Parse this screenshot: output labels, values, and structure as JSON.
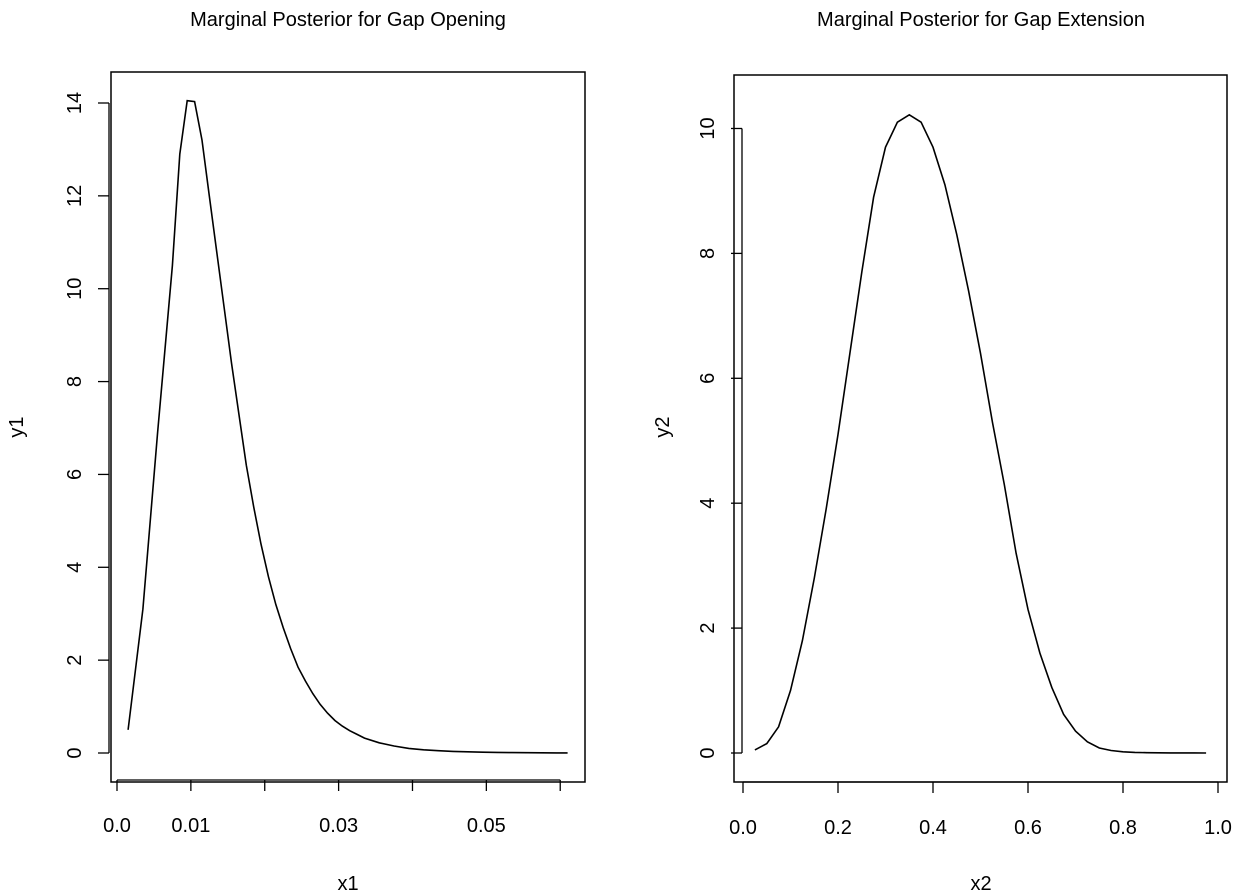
{
  "chart_data": [
    {
      "type": "line",
      "title": "Marginal Posterior for Gap Opening",
      "xlabel": "x1",
      "ylabel": "y1",
      "xlim": [
        0.0,
        0.062
      ],
      "ylim": [
        0,
        14
      ],
      "xticks": [
        0.0,
        0.01,
        0.02,
        0.03,
        0.04,
        0.05,
        0.06
      ],
      "xticklabels": [
        "0.0",
        "0.01",
        "",
        "0.03",
        "",
        "0.05",
        ""
      ],
      "yticks": [
        0,
        2,
        4,
        6,
        8,
        10,
        12,
        14
      ],
      "yticklabels": [
        "0",
        "2",
        "4",
        "6",
        "8",
        "10",
        "12",
        "14"
      ],
      "grid": false,
      "series": [
        {
          "x": [
            0.0015,
            0.0035,
            0.0055,
            0.0075,
            0.0085,
            0.0095,
            0.0105,
            0.0115,
            0.0125,
            0.0135,
            0.0145,
            0.0155,
            0.0165,
            0.0175,
            0.0185,
            0.0195,
            0.0205,
            0.0215,
            0.0225,
            0.0235,
            0.0245,
            0.0255,
            0.0265,
            0.0275,
            0.0285,
            0.0295,
            0.0305,
            0.0315,
            0.0325,
            0.0335,
            0.0355,
            0.0375,
            0.0395,
            0.0415,
            0.0435,
            0.0455,
            0.0475,
            0.0495,
            0.0515,
            0.0535,
            0.0555,
            0.0575,
            0.0595,
            0.061
          ],
          "y": [
            0.5,
            3.1,
            6.9,
            10.5,
            12.9,
            14.05,
            14.03,
            13.2,
            12.0,
            10.8,
            9.6,
            8.4,
            7.3,
            6.2,
            5.3,
            4.5,
            3.8,
            3.2,
            2.7,
            2.25,
            1.85,
            1.55,
            1.28,
            1.05,
            0.86,
            0.7,
            0.58,
            0.48,
            0.4,
            0.32,
            0.22,
            0.15,
            0.1,
            0.07,
            0.05,
            0.035,
            0.025,
            0.018,
            0.012,
            0.008,
            0.006,
            0.004,
            0.003,
            0.002
          ]
        }
      ]
    },
    {
      "type": "line",
      "title": "Marginal Posterior for Gap Extension",
      "xlabel": "x2",
      "ylabel": "y2",
      "xlim": [
        0.0,
        1.0
      ],
      "ylim": [
        0,
        10.2
      ],
      "xticks": [
        0.0,
        0.2,
        0.4,
        0.6,
        0.8,
        1.0
      ],
      "xticklabels": [
        "0.0",
        "0.2",
        "0.4",
        "0.6",
        "0.8",
        "1.0"
      ],
      "yticks": [
        0,
        2,
        4,
        6,
        8,
        10
      ],
      "yticklabels": [
        "0",
        "2",
        "4",
        "6",
        "8",
        "10"
      ],
      "grid": false,
      "series": [
        {
          "x": [
            0.025,
            0.05,
            0.075,
            0.1,
            0.125,
            0.15,
            0.175,
            0.2,
            0.225,
            0.25,
            0.275,
            0.3,
            0.325,
            0.35,
            0.375,
            0.4,
            0.425,
            0.45,
            0.475,
            0.5,
            0.525,
            0.55,
            0.575,
            0.6,
            0.625,
            0.65,
            0.675,
            0.7,
            0.725,
            0.75,
            0.775,
            0.8,
            0.825,
            0.85,
            0.875,
            0.9,
            0.925,
            0.95,
            0.975
          ],
          "y": [
            0.05,
            0.15,
            0.42,
            1.0,
            1.8,
            2.8,
            3.9,
            5.1,
            6.4,
            7.7,
            8.9,
            9.7,
            10.1,
            10.22,
            10.1,
            9.7,
            9.1,
            8.3,
            7.4,
            6.4,
            5.3,
            4.3,
            3.2,
            2.3,
            1.6,
            1.05,
            0.62,
            0.35,
            0.18,
            0.08,
            0.04,
            0.02,
            0.01,
            0.005,
            0.003,
            0.002,
            0.001,
            0.001,
            0.0
          ]
        }
      ]
    }
  ]
}
